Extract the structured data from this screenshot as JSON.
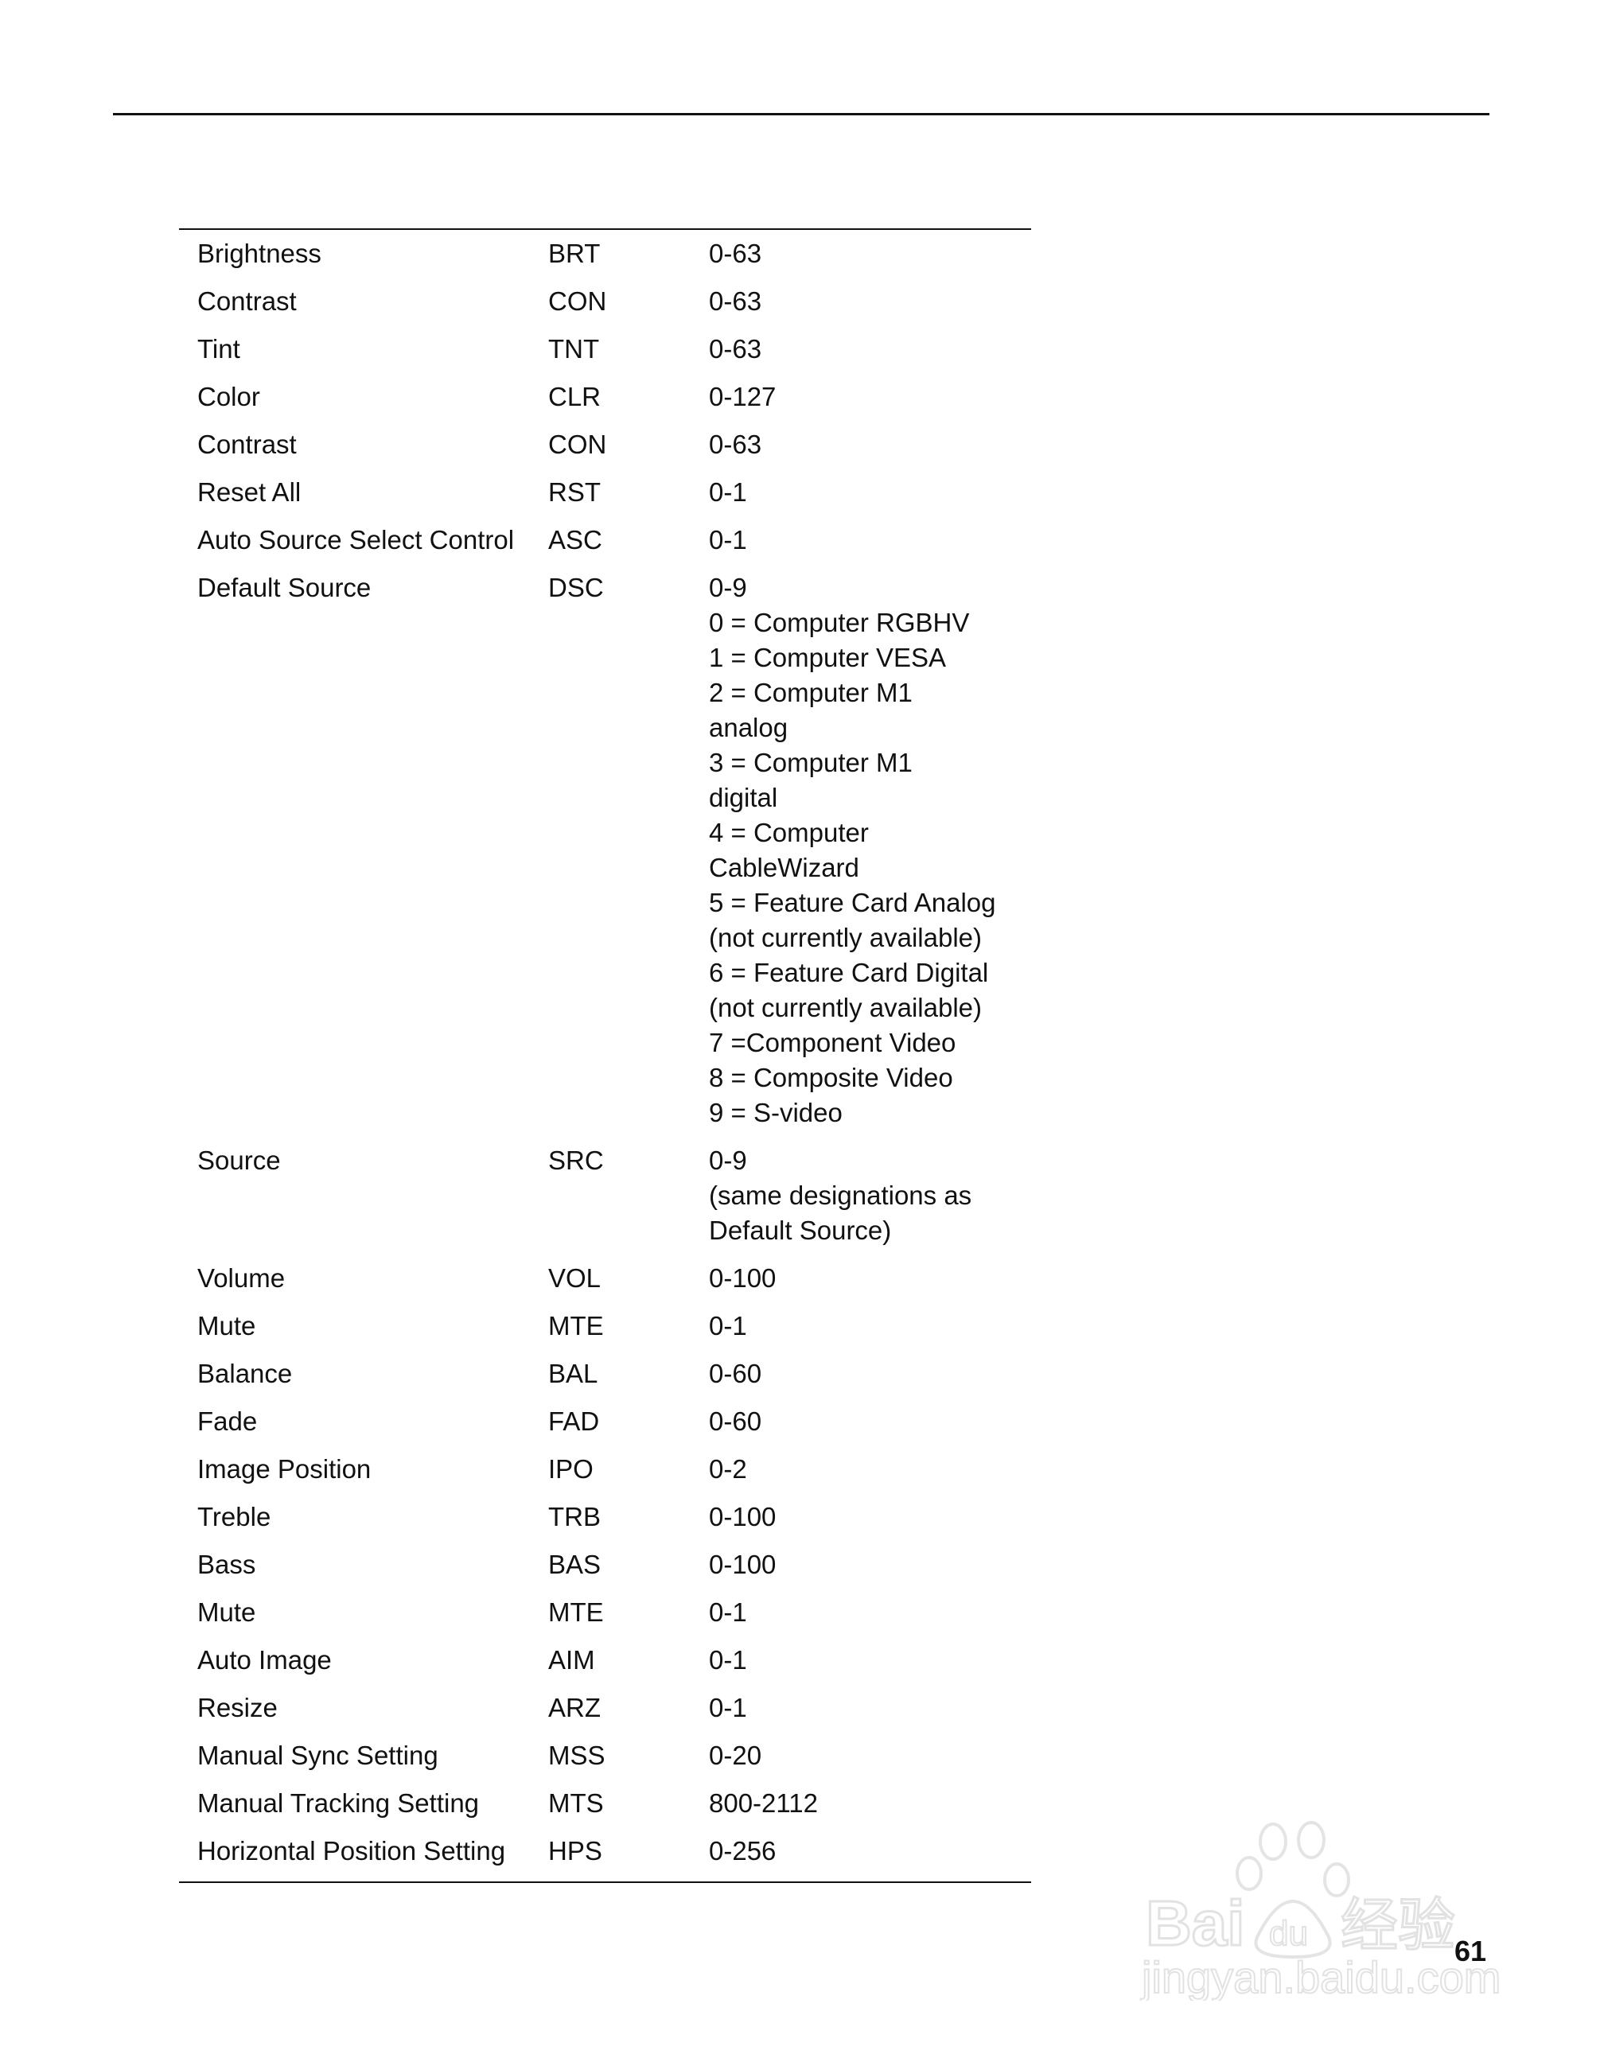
{
  "page_number": "61",
  "watermark": {
    "brand": "Bai du 经验",
    "url": "jingyan.baidu.com"
  },
  "rows": [
    {
      "name": "Brightness",
      "code": "BRT",
      "value": [
        "0-63"
      ]
    },
    {
      "name": "Contrast",
      "code": "CON",
      "value": [
        "0-63"
      ]
    },
    {
      "name": "Tint",
      "code": "TNT",
      "value": [
        "0-63"
      ]
    },
    {
      "name": "Color",
      "code": "CLR",
      "value": [
        "0-127"
      ]
    },
    {
      "name": "Contrast",
      "code": "CON",
      "value": [
        "0-63"
      ]
    },
    {
      "name": "Reset All",
      "code": "RST",
      "value": [
        "0-1"
      ]
    },
    {
      "name": "Auto Source Select Control",
      "code": "ASC",
      "value": [
        "0-1"
      ]
    },
    {
      "name": "Default Source",
      "code": "DSC",
      "value": [
        "0-9",
        "0 = Computer RGBHV",
        "1 = Computer VESA",
        "2 = Computer M1",
        "analog",
        "3 = Computer M1",
        "digital",
        "4 = Computer",
        "CableWizard",
        "5 = Feature Card Analog",
        "(not currently available)",
        "6 = Feature Card Digital",
        "(not currently available)",
        "7 =Component Video",
        "8 = Composite Video",
        "9 = S-video"
      ]
    },
    {
      "name": "Source",
      "code": "SRC",
      "value": [
        "0-9",
        "(same designations as",
        "Default Source)"
      ]
    },
    {
      "name": "Volume",
      "code": "VOL",
      "value": [
        "0-100"
      ]
    },
    {
      "name": "Mute",
      "code": "MTE",
      "value": [
        "0-1"
      ]
    },
    {
      "name": "Balance",
      "code": "BAL",
      "value": [
        "0-60"
      ]
    },
    {
      "name": "Fade",
      "code": "FAD",
      "value": [
        "0-60"
      ]
    },
    {
      "name": "Image Position",
      "code": "IPO",
      "value": [
        "0-2"
      ]
    },
    {
      "name": "Treble",
      "code": "TRB",
      "value": [
        "0-100"
      ]
    },
    {
      "name": "Bass",
      "code": "BAS",
      "value": [
        "0-100"
      ]
    },
    {
      "name": "Mute",
      "code": "MTE",
      "value": [
        "0-1"
      ]
    },
    {
      "name": "Auto Image",
      "code": "AIM",
      "value": [
        "0-1"
      ]
    },
    {
      "name": "Resize",
      "code": "ARZ",
      "value": [
        "0-1"
      ]
    },
    {
      "name": "Manual Sync Setting",
      "code": "MSS",
      "value": [
        "0-20"
      ]
    },
    {
      "name": "Manual Tracking Setting",
      "code": "MTS",
      "value": [
        "800-2112"
      ]
    },
    {
      "name": "Horizontal Position Setting",
      "code": "HPS",
      "value": [
        "0-256"
      ]
    }
  ]
}
